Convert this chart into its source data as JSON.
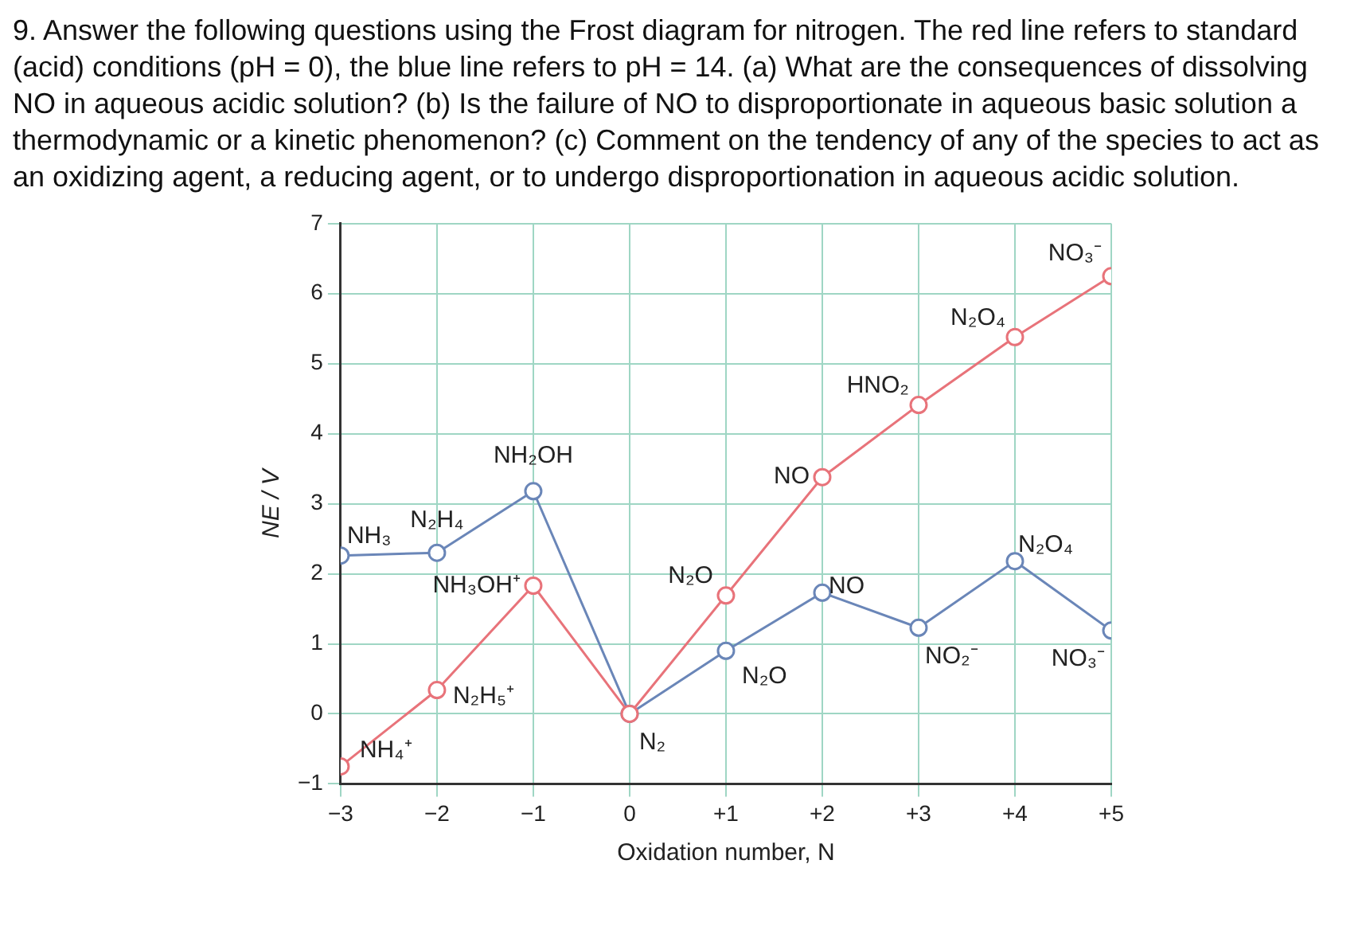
{
  "chart_data": {
    "type": "line",
    "title": "9. Answer the following questions using the Frost diagram for nitrogen. The red line refers to standard (acid) conditions (pH = 0), the blue line refers to pH = 14.  (a) What are the consequences of dissolving NO in aqueous acidic solution? (b) Is the failure of NO to disproportionate in aqueous basic solution a thermodynamic or a kinetic phenomenon? (c) Comment on the tendency of any of the species to act as an oxidizing agent, a reducing agent, or to undergo disproportionation in aqueous acidic solution.",
    "xlabel": "Oxidation number, N",
    "ylabel": "NE / V",
    "x": [
      -3,
      -2,
      -1,
      0,
      1,
      2,
      3,
      4,
      5
    ],
    "series": [
      {
        "color": "#e8737a",
        "values": [
          -0.75,
          0.34,
          1.83,
          0,
          1.69,
          3.38,
          4.41,
          5.38,
          6.25
        ]
      },
      {
        "color": "#6a86b8",
        "values": [
          2.26,
          2.3,
          3.18,
          0,
          0.9,
          1.73,
          1.23,
          2.18,
          1.19
        ]
      }
    ],
    "xlim": [
      -3,
      5
    ],
    "ylim": [
      -1,
      7
    ],
    "xticks": [
      {
        "value": -3,
        "label": "−3"
      },
      {
        "value": -2,
        "label": "−2"
      },
      {
        "value": -1,
        "label": "−1"
      },
      0,
      {
        "value": 1,
        "label": "+1"
      },
      {
        "value": 2,
        "label": "+2"
      },
      {
        "value": 3,
        "label": "+3"
      },
      {
        "value": 4,
        "label": "+4"
      },
      {
        "value": 5,
        "label": "+5"
      }
    ],
    "yticks": [
      {
        "value": -1,
        "label": "−1"
      },
      0,
      1,
      2,
      3,
      4,
      5,
      6,
      7
    ],
    "grid": true,
    "marker": "circle",
    "line_style": "solid",
    "legend": false,
    "annotations": [
      {
        "text": "NH₄⁺",
        "x": -3,
        "y": -0.75
      },
      {
        "text": "N₂H₅⁺",
        "x": -2,
        "y": 0.34
      },
      {
        "text": "NH₃OH⁺",
        "x": -1,
        "y": 1.83
      },
      {
        "text": "N₂",
        "x": 0,
        "y": 0
      },
      {
        "text": "N₂O",
        "x": 1,
        "y": 1.69
      },
      {
        "text": "NO",
        "x": 2,
        "y": 3.38
      },
      {
        "text": "HNO₂",
        "x": 3,
        "y": 4.41
      },
      {
        "text": "N₂O₄",
        "x": 4,
        "y": 5.38
      },
      {
        "text": "NO₃⁻",
        "x": 5,
        "y": 6.25
      },
      {
        "text": "NH₃",
        "x": -3,
        "y": 2.26
      },
      {
        "text": "N₂H₄",
        "x": -2,
        "y": 2.3
      },
      {
        "text": "NH₂OH",
        "x": -1,
        "y": 3.18
      },
      {
        "text": "N₂O",
        "x": 1,
        "y": 0.9
      },
      {
        "text": "NO",
        "x": 2,
        "y": 1.73
      },
      {
        "text": "NO₂⁻",
        "x": 3,
        "y": 1.23
      },
      {
        "text": "N₂O₄",
        "x": 4,
        "y": 2.18
      },
      {
        "text": "NO₃⁻",
        "x": 5,
        "y": 1.19
      }
    ]
  }
}
